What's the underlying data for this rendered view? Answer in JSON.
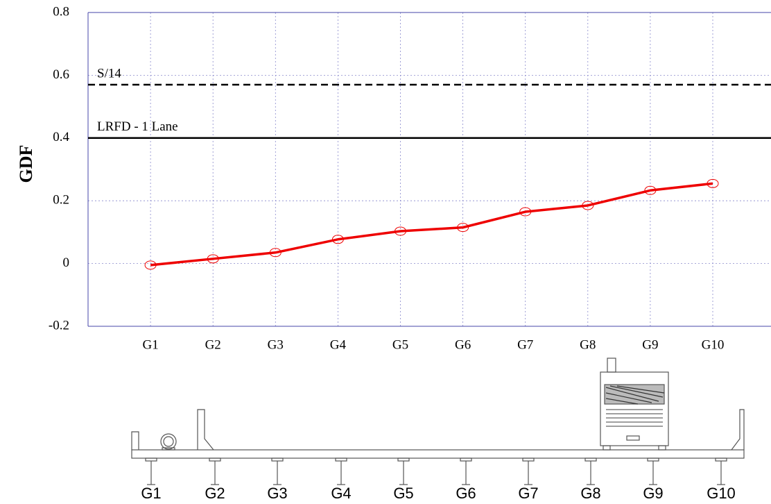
{
  "chart_data": {
    "type": "line",
    "y_label": "GDF",
    "categories": [
      "G1",
      "G2",
      "G3",
      "G4",
      "G5",
      "G6",
      "G7",
      "G8",
      "G9",
      "G10"
    ],
    "values": [
      -0.005,
      0.015,
      0.035,
      0.077,
      0.103,
      0.115,
      0.165,
      0.185,
      0.233,
      0.255
    ],
    "color": "#ee0000",
    "ylim": [
      -0.2,
      0.8
    ],
    "yticks": [
      -0.2,
      0,
      0.2,
      0.4,
      0.6,
      0.8
    ],
    "grid": true,
    "reference_lines": [
      {
        "label": "S/14",
        "value": 0.57,
        "style": "dashed"
      },
      {
        "label": "LRFD - 1 Lane",
        "value": 0.4,
        "style": "solid"
      }
    ]
  },
  "diagram": {
    "girder_labels": [
      "G1",
      "G2",
      "G3",
      "G4",
      "G5",
      "G6",
      "G7",
      "G8",
      "G9",
      "G10"
    ]
  }
}
